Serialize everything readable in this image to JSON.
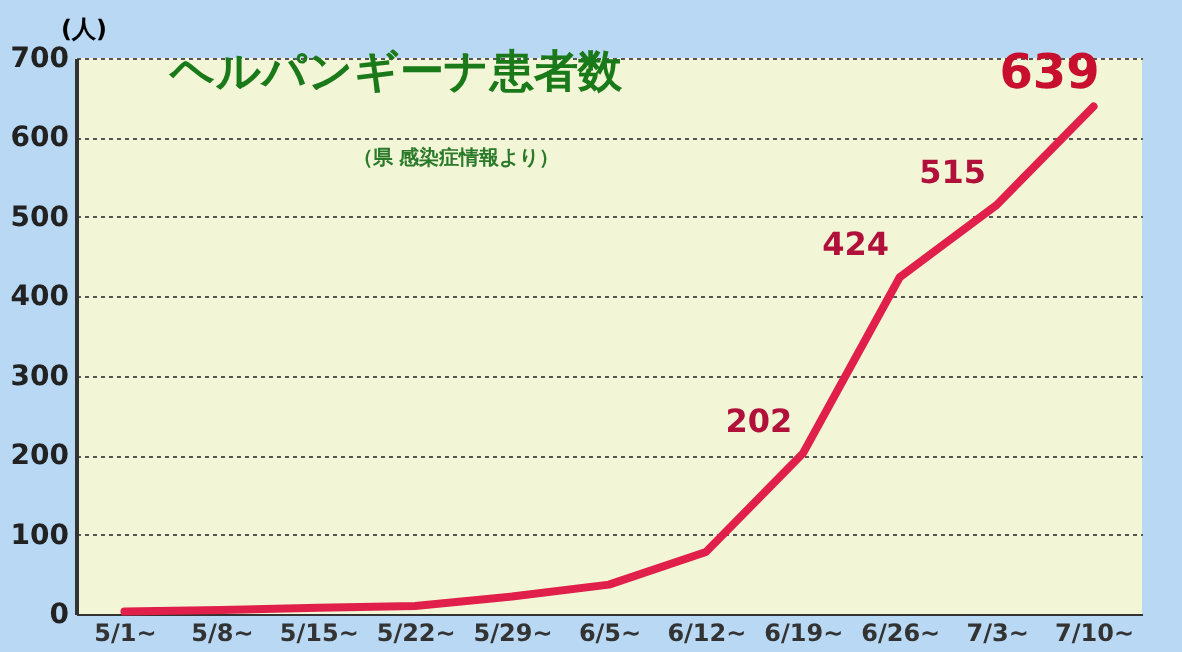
{
  "chart_data": {
    "type": "line",
    "title": "ヘルパンギーナ患者数",
    "ylabel": "(人)",
    "annotations": [
      "（県 感染症情報より）"
    ],
    "categories": [
      "5/1~",
      "5/8~",
      "5/15~",
      "5/22~",
      "5/29~",
      "6/5~",
      "6/12~",
      "6/19~",
      "6/26~",
      "7/3~",
      "7/10~"
    ],
    "series": [
      {
        "color": "#e0204a",
        "values": [
          3,
          5,
          8,
          10,
          22,
          37,
          78,
          202,
          424,
          515,
          639
        ],
        "value_labels": [
          null,
          null,
          null,
          null,
          null,
          null,
          null,
          "202",
          "424",
          "515",
          "639"
        ]
      }
    ],
    "ylim": [
      0,
      700
    ],
    "yticks": [
      0,
      100,
      200,
      300,
      400,
      500,
      600,
      700
    ],
    "grid": "y",
    "line_style": "solid",
    "marker": "none"
  }
}
